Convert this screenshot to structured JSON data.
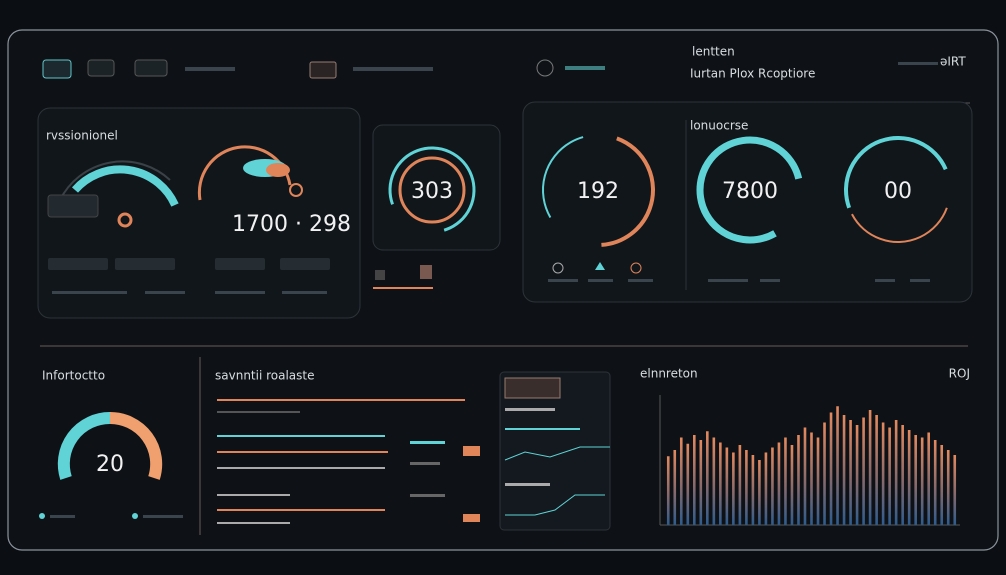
{
  "header": {
    "title": "lentten",
    "subtitle": "Iurtan Plox Rcoptiore",
    "badge": "əIRT"
  },
  "left_panel": {
    "title": "rvssionionel",
    "readout": "1700 · 298"
  },
  "center_gauge": {
    "value": "303"
  },
  "right_panel": {
    "title": "lonuocrse",
    "gauges": [
      "192",
      "7800",
      "00"
    ]
  },
  "bottom_left": {
    "title": "Infortoctto",
    "gauge": "20"
  },
  "bottom_middle": {
    "title": "savnntii roalaste"
  },
  "spectrum": {
    "title": "elnnreton",
    "badge": "ROJ",
    "ylim": [
      0,
      100
    ],
    "values": [
      55,
      60,
      70,
      65,
      72,
      68,
      75,
      70,
      66,
      62,
      58,
      64,
      60,
      56,
      52,
      58,
      62,
      66,
      70,
      64,
      72,
      78,
      74,
      70,
      82,
      90,
      95,
      88,
      84,
      80,
      86,
      92,
      88,
      82,
      78,
      84,
      80,
      76,
      72,
      70,
      74,
      68,
      64,
      60,
      56
    ]
  }
}
